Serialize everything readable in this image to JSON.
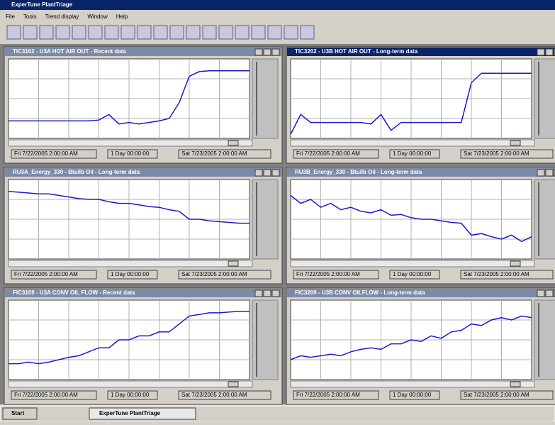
{
  "app_title": "ExperTune PlantTriage",
  "menu": [
    "File",
    "Tools",
    "Trend display",
    "Window",
    "Help"
  ],
  "panels": [
    {
      "title": "TIC3102 - U3A HOT AIR OUT - Recent data",
      "color": "#1a1acc",
      "times": [
        "Fri 7/22/2005 2:00:00 AM",
        "1 Day 00:00:00",
        "Sat 7/23/2005 2:00:00 AM"
      ],
      "trace": [
        22,
        22,
        22,
        22,
        22,
        22,
        22,
        22,
        22,
        23,
        30,
        18,
        20,
        18,
        20,
        22,
        25,
        45,
        78,
        84,
        85,
        85,
        85,
        85,
        85
      ]
    },
    {
      "title": "TIC3202 - U3B HOT AIR OUT - Long-term data",
      "color": "#1a1acc",
      "times": [
        "Fri 7/22/2005 2:00:00 AM",
        "1 Day 00:00:00",
        "Sat 7/23/2005 2:00:00 AM"
      ],
      "trace": [
        5,
        30,
        20,
        20,
        20,
        20,
        20,
        20,
        18,
        30,
        10,
        20,
        20,
        20,
        20,
        20,
        20,
        20,
        70,
        82,
        82,
        82,
        82,
        82,
        82
      ]
    },
    {
      "title": "RU3A_Energy_330 - Btu/lb Oil - Long-term data",
      "color": "#1a1acc",
      "times": [
        "Fri 7/22/2005 2:00:00 AM",
        "1 Day 00:00:00",
        "Sat 7/23/2005 2:00:00 AM"
      ],
      "trace": [
        85,
        84,
        83,
        82,
        82,
        80,
        78,
        76,
        75,
        75,
        72,
        70,
        70,
        68,
        66,
        65,
        62,
        60,
        50,
        50,
        48,
        47,
        46,
        45,
        45
      ]
    },
    {
      "title": "RU3B_Energy_330 - Btu/lb Oil - Long-term data",
      "color": "#1a1acc",
      "times": [
        "Fri 7/22/2005 2:00:00 AM",
        "1 Day 00:00:00",
        "Sat 7/23/2005 2:00:00 AM"
      ],
      "trace": [
        80,
        70,
        75,
        65,
        70,
        62,
        65,
        60,
        58,
        62,
        55,
        56,
        52,
        50,
        50,
        48,
        46,
        45,
        30,
        32,
        28,
        25,
        30,
        22,
        28
      ]
    },
    {
      "title": "FIC3109 - U3A CONV OIL FLOW - Recent data",
      "color": "#1a1acc",
      "times": [
        "Fri 7/22/2005 2:00:00 AM",
        "1 Day 00:00:00",
        "Sat 7/23/2005 2:00:00 AM"
      ],
      "trace": [
        20,
        20,
        22,
        20,
        22,
        25,
        28,
        30,
        35,
        40,
        40,
        50,
        50,
        55,
        55,
        60,
        60,
        70,
        80,
        82,
        84,
        84,
        85,
        86,
        86
      ]
    },
    {
      "title": "FIC3209 - U3B CONV OILFLOW - Long-term data",
      "color": "#1a1acc",
      "times": [
        "Fri 7/22/2005 2:00:00 AM",
        "1 Day 00:00:00",
        "Sat 7/23/2005 2:00:00 AM"
      ],
      "trace": [
        25,
        30,
        28,
        30,
        32,
        30,
        35,
        38,
        40,
        38,
        45,
        45,
        50,
        48,
        55,
        52,
        60,
        62,
        70,
        68,
        75,
        78,
        75,
        80,
        78
      ]
    }
  ],
  "taskbar": {
    "start": "Start",
    "task": "ExperTune PlantTriage"
  }
}
